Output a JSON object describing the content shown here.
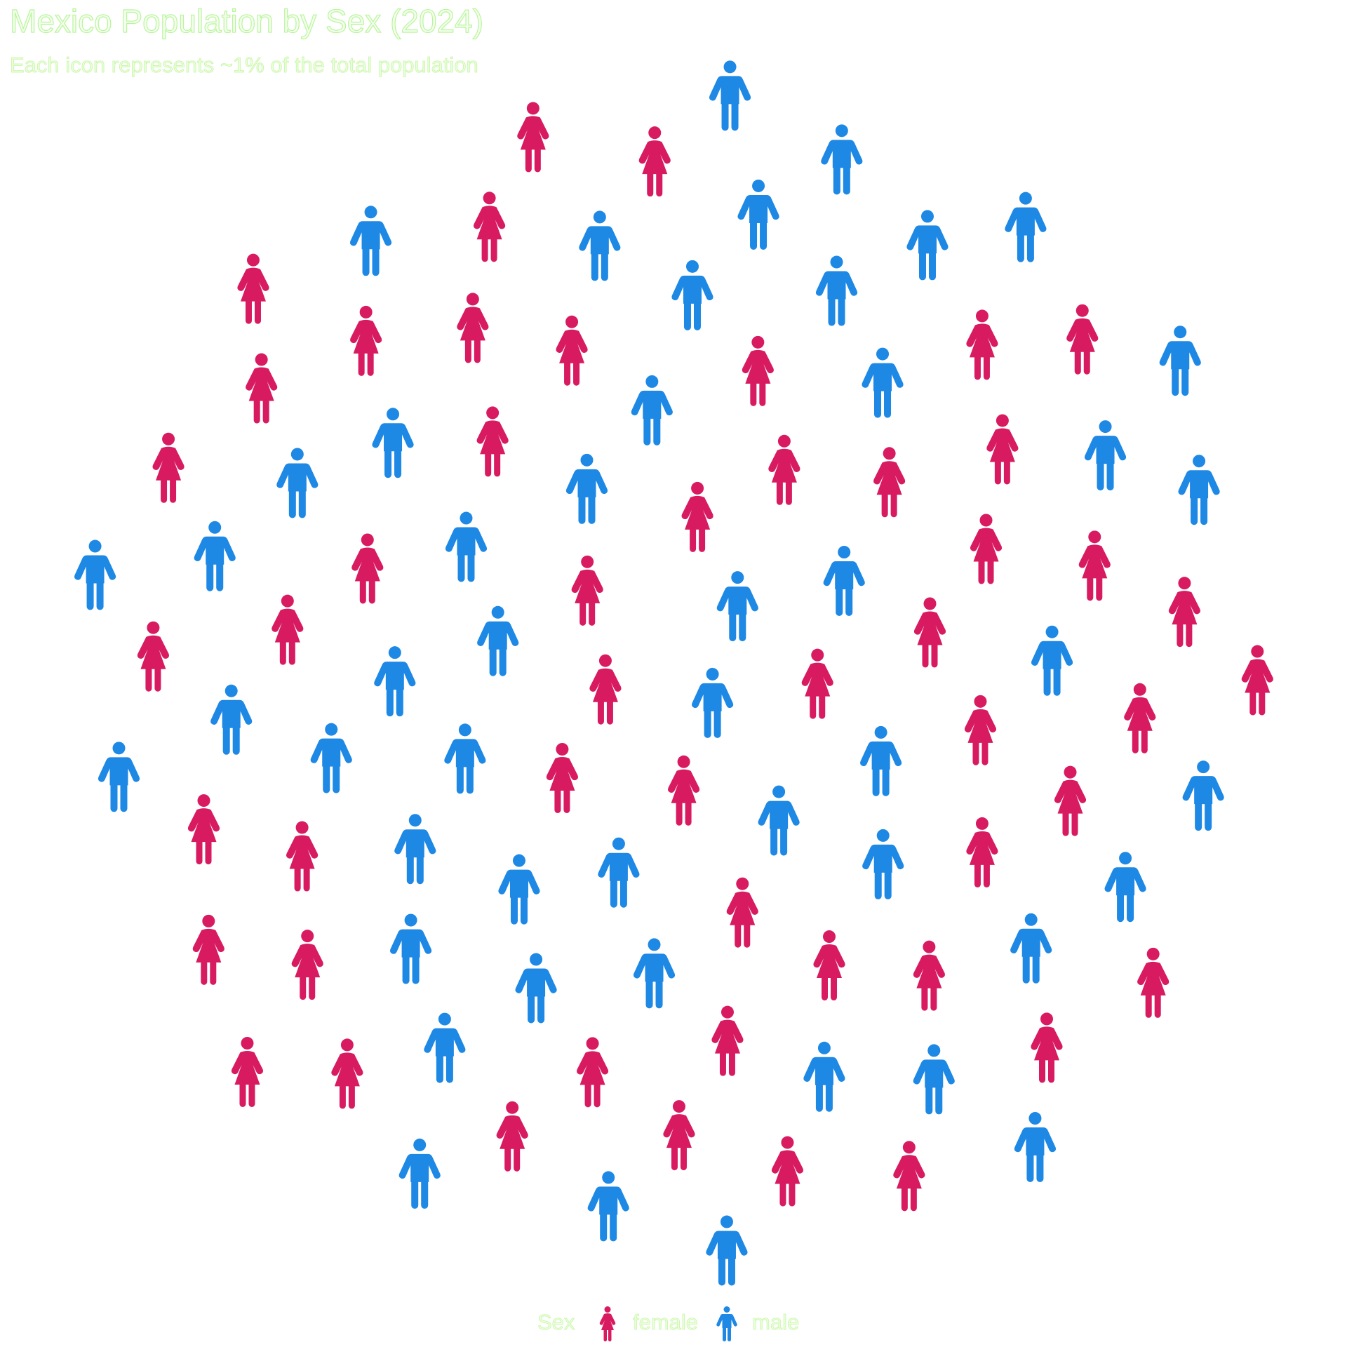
{
  "chart_data": {
    "type": "pictogram",
    "title": "Mexico Population by Sex (2024)",
    "subtitle": "Each icon represents ~1% of the total population",
    "legend_title": "Sex",
    "categories": [
      "female",
      "male"
    ],
    "values": [
      51,
      49
    ],
    "colors": [
      "#d81b60",
      "#1e88e5"
    ]
  }
}
